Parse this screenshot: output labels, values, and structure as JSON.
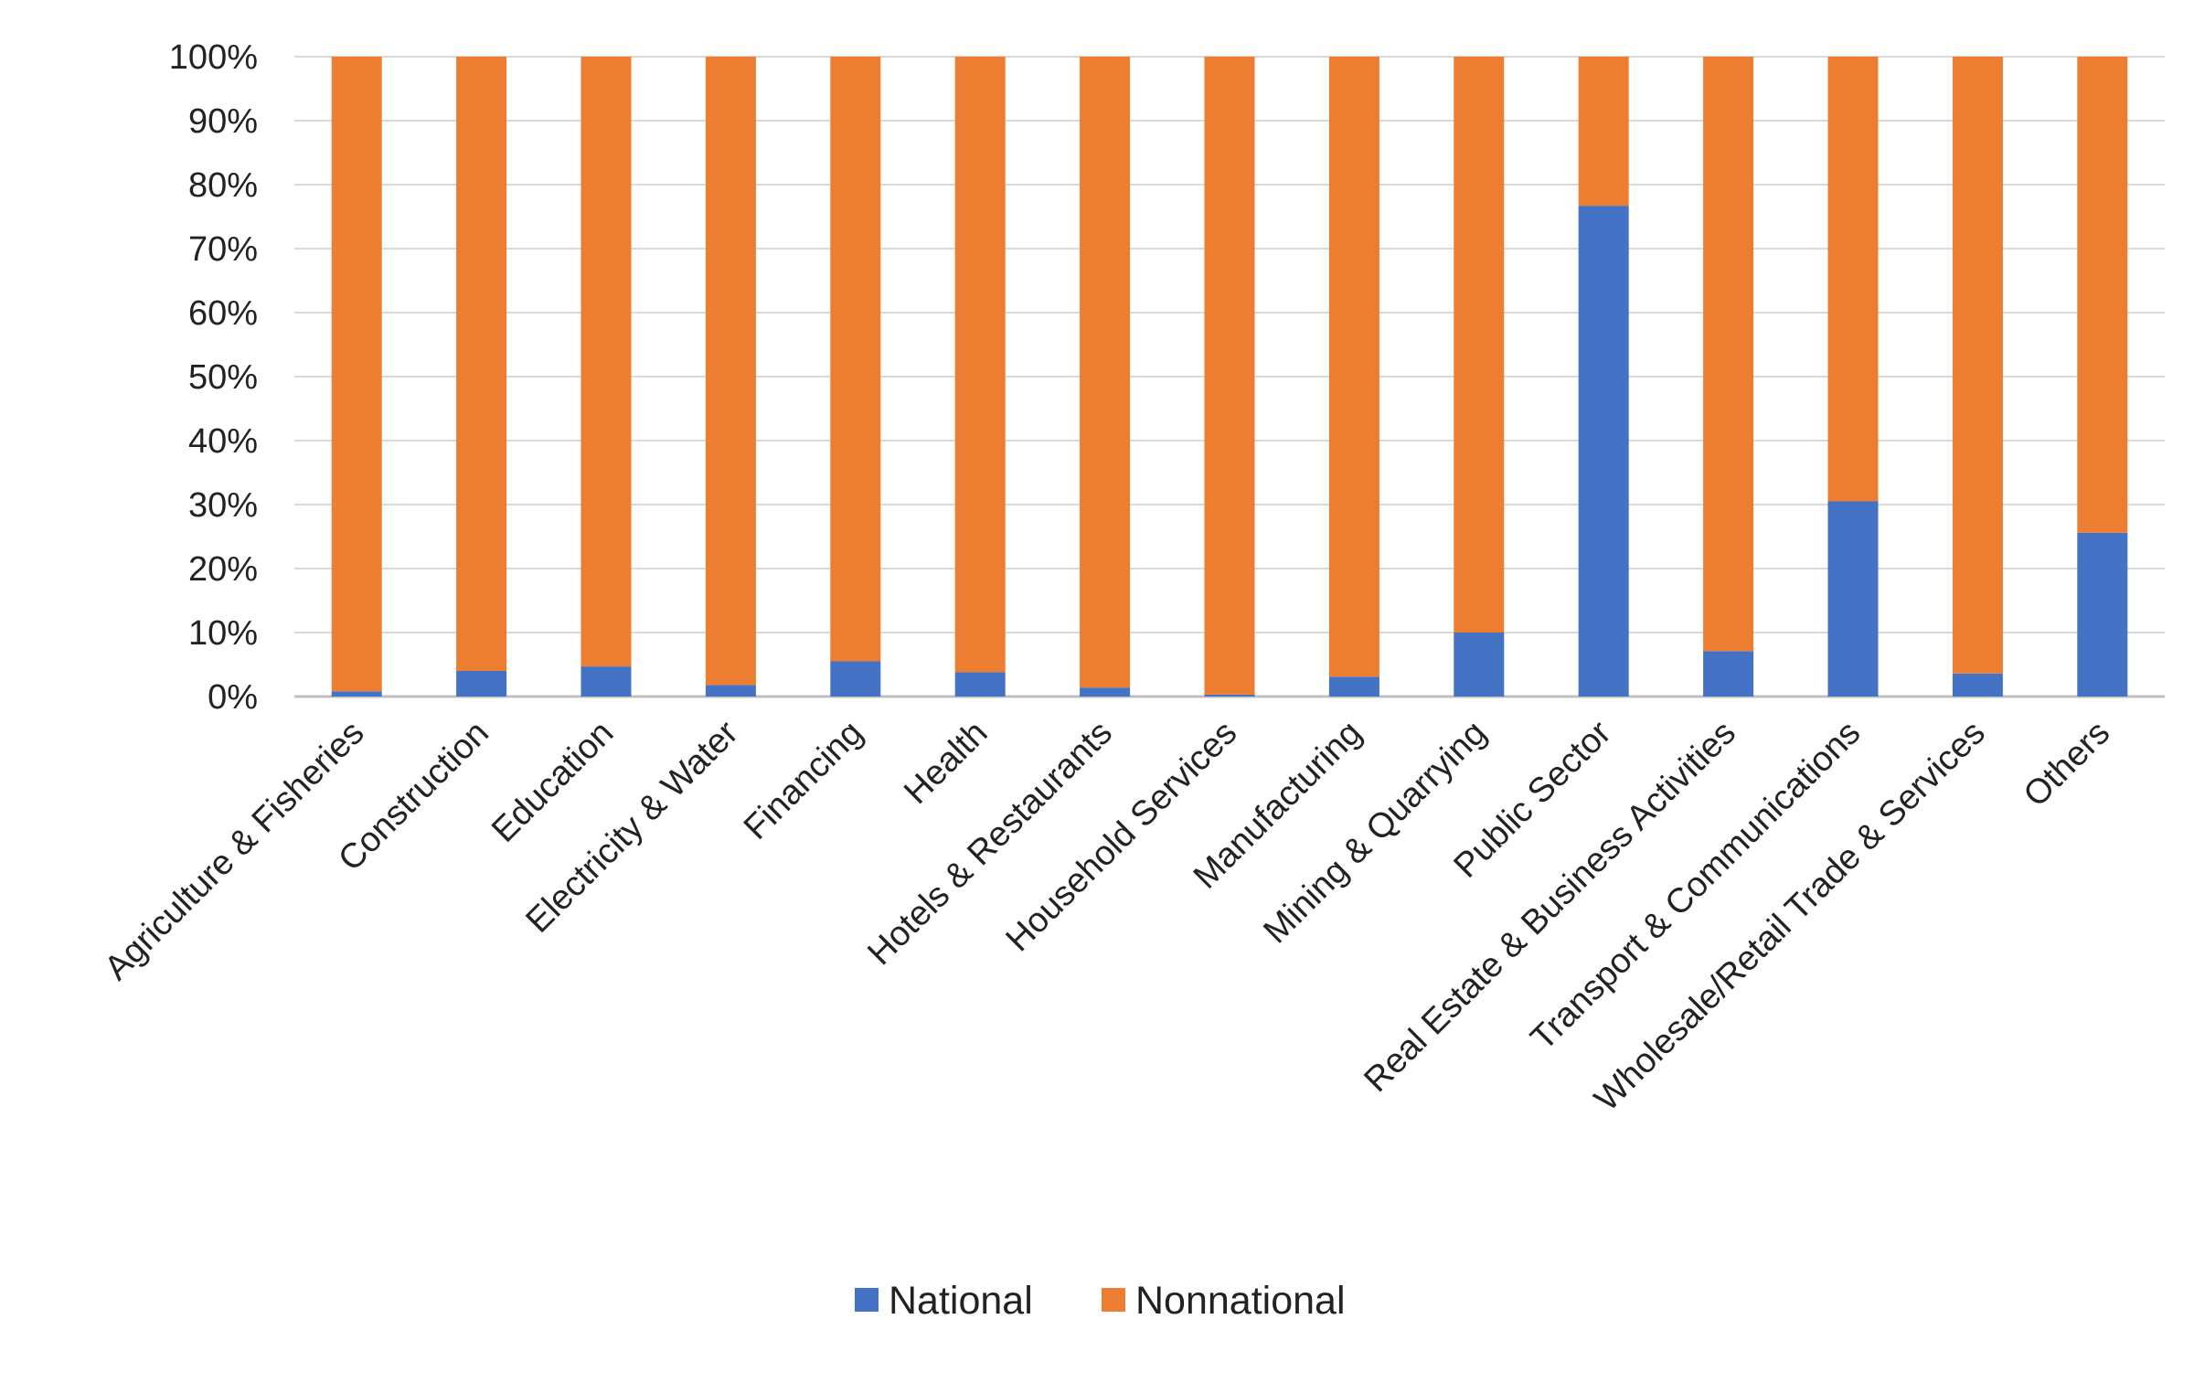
{
  "chart_data": {
    "type": "bar",
    "stacked": true,
    "categories": [
      "Agriculture & Fisheries",
      "Construction",
      "Education",
      "Electricity & Water",
      "Financing",
      "Health",
      "Hotels & Restaurants",
      "Household Services",
      "Manufacturing",
      "Mining & Quarrying",
      "Public Sector",
      "Real Estate & Business Activities",
      "Transport & Communications",
      "Wholesale/Retail Trade & Services",
      "Others"
    ],
    "series": [
      {
        "name": "National",
        "color": "#4472C4",
        "values": [
          0.8,
          4,
          4.7,
          1.8,
          5.5,
          3.8,
          1.4,
          0.3,
          3.1,
          10,
          76.7,
          7.1,
          30.5,
          3.6,
          25.6
        ]
      },
      {
        "name": "Nonnational",
        "color": "#ED7D31",
        "values": [
          99.2,
          96,
          95.3,
          98.2,
          94.5,
          96.2,
          98.6,
          99.7,
          96.9,
          90,
          23.3,
          92.9,
          69.5,
          96.4,
          74.4
        ]
      }
    ],
    "yticks": [
      "0%",
      "10%",
      "20%",
      "30%",
      "40%",
      "50%",
      "60%",
      "70%",
      "80%",
      "90%",
      "100%"
    ],
    "ylim": [
      0,
      100
    ],
    "grid": true,
    "legend_position": "bottom"
  }
}
